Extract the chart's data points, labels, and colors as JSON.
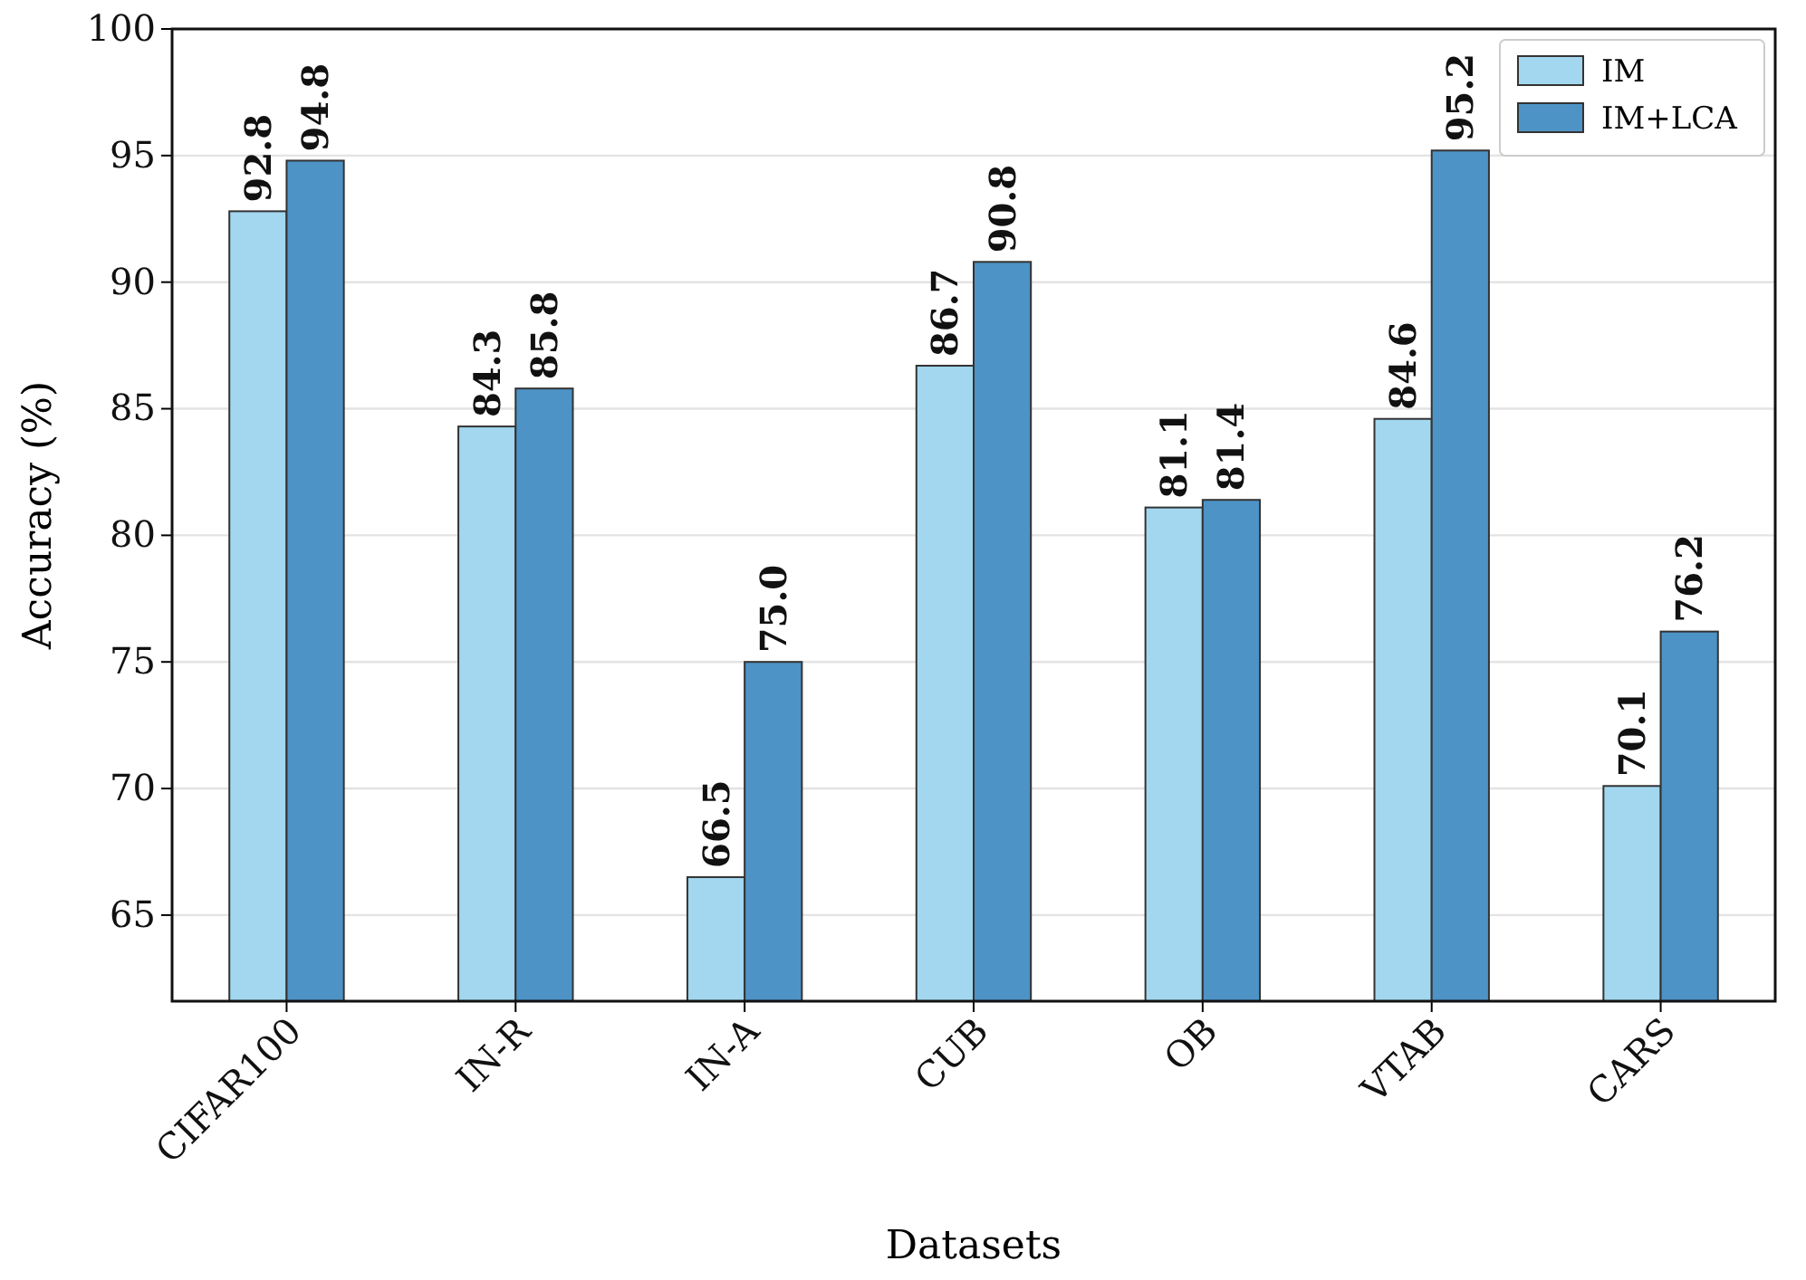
{
  "chart_data": {
    "type": "bar",
    "xlabel": "Datasets",
    "ylabel": "Accuracy (%)",
    "categories": [
      "CIFAR100",
      "IN-R",
      "IN-A",
      "CUB",
      "OB",
      "VTAB",
      "CARS"
    ],
    "series": [
      {
        "name": "IM",
        "color": "#a2d7ef",
        "values": [
          92.8,
          84.3,
          66.5,
          86.7,
          81.1,
          84.6,
          70.1
        ],
        "value_labels": [
          "92.8",
          "84.3",
          "66.5",
          "86.7",
          "81.1",
          "84.6",
          "70.1"
        ]
      },
      {
        "name": "IM+LCA",
        "color": "#4d93c6",
        "values": [
          94.8,
          85.8,
          75.0,
          90.8,
          81.4,
          95.2,
          76.2
        ],
        "value_labels": [
          "94.8",
          "85.8",
          "75.0",
          "90.8",
          "81.4",
          "95.2",
          "76.2"
        ]
      }
    ],
    "ylim": [
      61.6,
      100
    ],
    "yticks": [
      65,
      70,
      75,
      80,
      85,
      90,
      95,
      100
    ],
    "grid": "y",
    "legend": "top right"
  }
}
